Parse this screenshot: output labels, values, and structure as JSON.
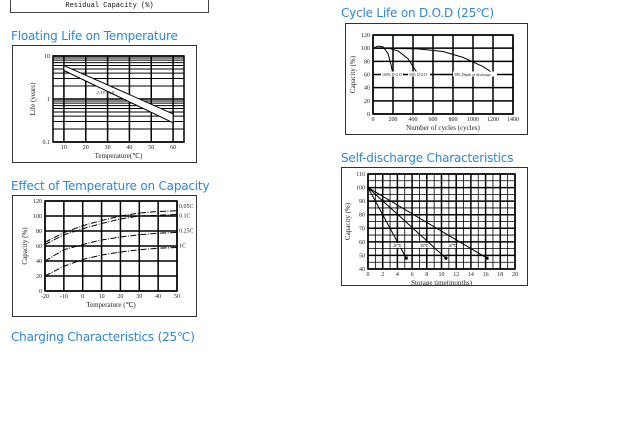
{
  "top_fragment": {
    "axis_label": "Residual Capacity (%)"
  },
  "titles": {
    "floating": "Floating Life on Temperature",
    "temp_capacity": "Effect of Temperature on Capacity",
    "cycle": "Cycle Life on D.O.D (25℃)",
    "self_discharge": "Self-discharge Characteristics",
    "charging": "Charging Characteristics (25℃)"
  },
  "chart_data": [
    {
      "id": "floating",
      "type": "area",
      "xlabel": "Temperature(℃)",
      "ylabel": "Life (years)",
      "xlim": [
        5,
        65
      ],
      "ylim": [
        0.1,
        10
      ],
      "yscale": "log",
      "xticks": [
        "10",
        "20",
        "30",
        "40",
        "50",
        "60"
      ],
      "yticks": [
        "0.1",
        "1",
        "10"
      ],
      "grid": true,
      "annotation": "2.3V/Cell",
      "series": [
        {
          "role": "upper",
          "x": [
            10,
            60
          ],
          "y": [
            6,
            0.45
          ]
        },
        {
          "role": "lower",
          "x": [
            10,
            60
          ],
          "y": [
            4.6,
            0.28
          ]
        }
      ]
    },
    {
      "id": "temp_capacity",
      "type": "line",
      "xlabel": "Temperature (℃)",
      "ylabel": "Capacity (%)",
      "xlim": [
        -20,
        50
      ],
      "ylim": [
        0,
        120
      ],
      "xticks": [
        "-20",
        "-10",
        "0",
        "10",
        "20",
        "30",
        "40",
        "50"
      ],
      "yticks": [
        "0",
        "20",
        "40",
        "60",
        "80",
        "100",
        "120"
      ],
      "grid": true,
      "x": [
        -20,
        -10,
        0,
        10,
        20,
        30,
        40,
        50
      ],
      "series": [
        {
          "name": "0.05C",
          "values": [
            65,
            78,
            87,
            94,
            100,
            104,
            106,
            107
          ]
        },
        {
          "name": "0.1C",
          "values": [
            62,
            75,
            83,
            90,
            96,
            100,
            101,
            102
          ]
        },
        {
          "name": "0.25C",
          "values": [
            40,
            55,
            62,
            68,
            72,
            75,
            77,
            78
          ]
        },
        {
          "name": "1C",
          "values": [
            20,
            33,
            42,
            48,
            52,
            55,
            57,
            58
          ]
        }
      ]
    },
    {
      "id": "cycle",
      "type": "line",
      "xlabel": "Number of cycles (cycles)",
      "ylabel": "Capacity (%)",
      "xlim": [
        0,
        1400
      ],
      "ylim": [
        0,
        120
      ],
      "xticks": [
        "0",
        "200",
        "400",
        "600",
        "800",
        "1000",
        "1200",
        "1400"
      ],
      "yticks": [
        "0",
        "20",
        "40",
        "60",
        "80",
        "100",
        "120"
      ],
      "grid": true,
      "series": [
        {
          "name": "100% D.O.D",
          "x": [
            0,
            50,
            100,
            150,
            180,
            200
          ],
          "y": [
            100,
            103,
            102,
            92,
            75,
            60
          ]
        },
        {
          "name": "50% D.O.D",
          "x": [
            0,
            150,
            250,
            350,
            410,
            450
          ],
          "y": [
            100,
            100,
            96,
            84,
            70,
            60
          ]
        },
        {
          "name": "30% Depth of discharge",
          "x": [
            0,
            450,
            700,
            900,
            1100,
            1200
          ],
          "y": [
            100,
            99,
            95,
            86,
            72,
            62
          ]
        }
      ]
    },
    {
      "id": "self_discharge",
      "type": "line",
      "xlabel": "Storage time(months)",
      "ylabel": "Capacity (%)",
      "xlim": [
        0,
        20
      ],
      "ylim": [
        40,
        110
      ],
      "xticks": [
        "0",
        "2",
        "4",
        "6",
        "8",
        "10",
        "12",
        "14",
        "16",
        "18",
        "20"
      ],
      "yticks": [
        "40",
        "50",
        "60",
        "70",
        "80",
        "90",
        "100",
        "110"
      ],
      "grid": true,
      "series": [
        {
          "name": "40℃",
          "x": [
            0,
            5.2
          ],
          "y": [
            100,
            48
          ]
        },
        {
          "name": "30℃",
          "x": [
            0,
            10.6
          ],
          "y": [
            100,
            48
          ]
        },
        {
          "name": "20℃",
          "x": [
            0,
            16.2
          ],
          "y": [
            100,
            48
          ]
        }
      ]
    }
  ]
}
